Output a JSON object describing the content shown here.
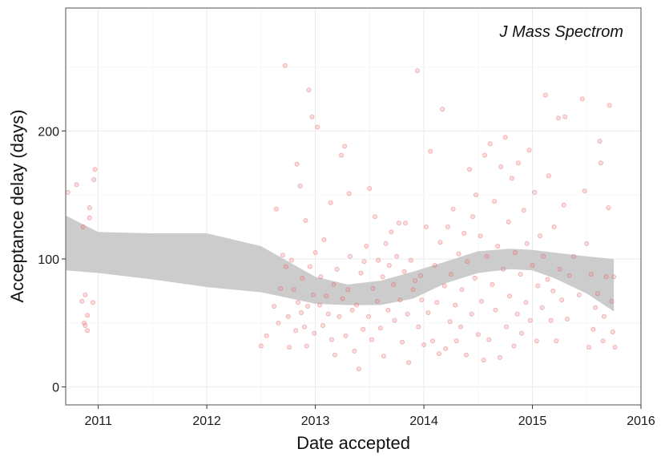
{
  "chart_data": {
    "type": "scatter",
    "title": "",
    "panel_label": "J Mass Spectrom",
    "xlabel": "Date accepted",
    "ylabel": "Acceptance delay (days)",
    "xlim": [
      2010.7,
      2016.0
    ],
    "ylim": [
      -14,
      296
    ],
    "x_ticks": [
      2011,
      2012,
      2013,
      2014,
      2015,
      2016
    ],
    "y_ticks": [
      0,
      100,
      200
    ],
    "grid": true,
    "legend": "none",
    "point_color": "#f08080",
    "band_color": "#cccccc",
    "smooth_fit": {
      "x": [
        2010.7,
        2011.0,
        2011.5,
        2012.0,
        2012.5,
        2013.0,
        2013.3,
        2013.6,
        2013.9,
        2014.2,
        2014.5,
        2014.8,
        2015.0,
        2015.2,
        2015.5,
        2015.75
      ],
      "lower": [
        91,
        89,
        84,
        78,
        74,
        65,
        64,
        64,
        69,
        81,
        89,
        92,
        91,
        85,
        73,
        59
      ],
      "upper": [
        134,
        121,
        120,
        120,
        110,
        86,
        80,
        83,
        90,
        98,
        106,
        108,
        107,
        105,
        102,
        100
      ]
    },
    "points": [
      [
        2010.72,
        152
      ],
      [
        2010.8,
        158
      ],
      [
        2010.86,
        125
      ],
      [
        2010.88,
        72
      ],
      [
        2010.88,
        48
      ],
      [
        2010.9,
        44
      ],
      [
        2010.92,
        132
      ],
      [
        2010.95,
        66
      ],
      [
        2010.97,
        170
      ],
      [
        2010.96,
        162
      ],
      [
        2010.85,
        67
      ],
      [
        2010.9,
        56
      ],
      [
        2010.87,
        50
      ],
      [
        2010.92,
        140
      ],
      [
        2012.5,
        32
      ],
      [
        2012.55,
        40
      ],
      [
        2012.62,
        63
      ],
      [
        2012.64,
        139
      ],
      [
        2012.66,
        50
      ],
      [
        2012.68,
        77
      ],
      [
        2012.7,
        103
      ],
      [
        2012.72,
        251
      ],
      [
        2012.73,
        94
      ],
      [
        2012.75,
        55
      ],
      [
        2012.76,
        31
      ],
      [
        2012.78,
        99
      ],
      [
        2012.8,
        76
      ],
      [
        2012.82,
        44
      ],
      [
        2012.83,
        174
      ],
      [
        2012.84,
        66
      ],
      [
        2012.86,
        157
      ],
      [
        2012.87,
        58
      ],
      [
        2012.88,
        85
      ],
      [
        2012.9,
        47
      ],
      [
        2012.91,
        130
      ],
      [
        2012.92,
        32
      ],
      [
        2012.93,
        63
      ],
      [
        2012.94,
        232
      ],
      [
        2012.95,
        94
      ],
      [
        2012.97,
        211
      ],
      [
        2012.98,
        72
      ],
      [
        2012.99,
        42
      ],
      [
        2013.0,
        105
      ],
      [
        2013.02,
        203
      ],
      [
        2013.04,
        64
      ],
      [
        2013.05,
        86
      ],
      [
        2013.07,
        48
      ],
      [
        2013.08,
        115
      ],
      [
        2013.1,
        71
      ],
      [
        2013.12,
        57
      ],
      [
        2013.14,
        144
      ],
      [
        2013.15,
        37
      ],
      [
        2013.17,
        80
      ],
      [
        2013.18,
        25
      ],
      [
        2013.2,
        92
      ],
      [
        2013.22,
        55
      ],
      [
        2013.24,
        181
      ],
      [
        2013.25,
        69
      ],
      [
        2013.27,
        188
      ],
      [
        2013.28,
        40
      ],
      [
        2013.3,
        76
      ],
      [
        2013.31,
        151
      ],
      [
        2013.32,
        102
      ],
      [
        2013.34,
        60
      ],
      [
        2013.36,
        28
      ],
      [
        2013.38,
        64
      ],
      [
        2013.4,
        14
      ],
      [
        2013.42,
        89
      ],
      [
        2013.44,
        45
      ],
      [
        2013.45,
        98
      ],
      [
        2013.47,
        110
      ],
      [
        2013.49,
        55
      ],
      [
        2013.5,
        155
      ],
      [
        2013.52,
        37
      ],
      [
        2013.53,
        77
      ],
      [
        2013.55,
        133
      ],
      [
        2013.57,
        67
      ],
      [
        2013.58,
        99
      ],
      [
        2013.6,
        46
      ],
      [
        2013.62,
        86
      ],
      [
        2013.63,
        24
      ],
      [
        2013.65,
        112
      ],
      [
        2013.67,
        60
      ],
      [
        2013.68,
        95
      ],
      [
        2013.7,
        121
      ],
      [
        2013.72,
        80
      ],
      [
        2013.73,
        52
      ],
      [
        2013.75,
        102
      ],
      [
        2013.77,
        128
      ],
      [
        2013.78,
        68
      ],
      [
        2013.8,
        35
      ],
      [
        2013.82,
        90
      ],
      [
        2013.83,
        128
      ],
      [
        2013.85,
        57
      ],
      [
        2013.86,
        19
      ],
      [
        2013.88,
        99
      ],
      [
        2013.9,
        76
      ],
      [
        2013.92,
        83
      ],
      [
        2013.94,
        247
      ],
      [
        2013.95,
        47
      ],
      [
        2013.97,
        87
      ],
      [
        2013.98,
        68
      ],
      [
        2014.0,
        33
      ],
      [
        2014.02,
        125
      ],
      [
        2014.04,
        58
      ],
      [
        2014.06,
        184
      ],
      [
        2014.08,
        36
      ],
      [
        2014.1,
        95
      ],
      [
        2014.12,
        66
      ],
      [
        2014.14,
        26
      ],
      [
        2014.15,
        113
      ],
      [
        2014.17,
        217
      ],
      [
        2014.19,
        79
      ],
      [
        2014.2,
        30
      ],
      [
        2014.22,
        125
      ],
      [
        2014.24,
        51
      ],
      [
        2014.25,
        88
      ],
      [
        2014.27,
        139
      ],
      [
        2014.29,
        64
      ],
      [
        2014.3,
        36
      ],
      [
        2014.32,
        104
      ],
      [
        2014.34,
        47
      ],
      [
        2014.35,
        76
      ],
      [
        2014.37,
        120
      ],
      [
        2014.39,
        25
      ],
      [
        2014.4,
        98
      ],
      [
        2014.42,
        170
      ],
      [
        2014.44,
        57
      ],
      [
        2014.45,
        133
      ],
      [
        2014.47,
        85
      ],
      [
        2014.48,
        150
      ],
      [
        2014.5,
        41
      ],
      [
        2014.52,
        118
      ],
      [
        2014.53,
        67
      ],
      [
        2014.55,
        21
      ],
      [
        2014.56,
        181
      ],
      [
        2014.58,
        102
      ],
      [
        2014.6,
        37
      ],
      [
        2014.61,
        190
      ],
      [
        2014.63,
        80
      ],
      [
        2014.65,
        145
      ],
      [
        2014.66,
        60
      ],
      [
        2014.68,
        110
      ],
      [
        2014.7,
        23
      ],
      [
        2014.71,
        172
      ],
      [
        2014.73,
        92
      ],
      [
        2014.75,
        195
      ],
      [
        2014.76,
        47
      ],
      [
        2014.78,
        129
      ],
      [
        2014.79,
        71
      ],
      [
        2014.81,
        163
      ],
      [
        2014.83,
        32
      ],
      [
        2014.84,
        105
      ],
      [
        2014.86,
        57
      ],
      [
        2014.87,
        175
      ],
      [
        2014.89,
        88
      ],
      [
        2014.9,
        42
      ],
      [
        2014.92,
        138
      ],
      [
        2014.94,
        66
      ],
      [
        2014.95,
        112
      ],
      [
        2014.97,
        185
      ],
      [
        2014.98,
        52
      ],
      [
        2015.0,
        95
      ],
      [
        2015.02,
        152
      ],
      [
        2015.04,
        36
      ],
      [
        2015.05,
        79
      ],
      [
        2015.07,
        118
      ],
      [
        2015.09,
        62
      ],
      [
        2015.1,
        102
      ],
      [
        2015.12,
        228
      ],
      [
        2015.14,
        84
      ],
      [
        2015.15,
        165
      ],
      [
        2015.17,
        52
      ],
      [
        2015.19,
        75
      ],
      [
        2015.2,
        125
      ],
      [
        2015.22,
        36
      ],
      [
        2015.24,
        210
      ],
      [
        2015.25,
        92
      ],
      [
        2015.27,
        68
      ],
      [
        2015.29,
        142
      ],
      [
        2015.3,
        211
      ],
      [
        2015.32,
        53
      ],
      [
        2015.34,
        87
      ],
      [
        2015.38,
        102
      ],
      [
        2015.43,
        72
      ],
      [
        2015.46,
        225
      ],
      [
        2015.48,
        153
      ],
      [
        2015.5,
        112
      ],
      [
        2015.52,
        31
      ],
      [
        2015.54,
        88
      ],
      [
        2015.56,
        45
      ],
      [
        2015.58,
        62
      ],
      [
        2015.6,
        73
      ],
      [
        2015.62,
        192
      ],
      [
        2015.63,
        175
      ],
      [
        2015.65,
        36
      ],
      [
        2015.66,
        55
      ],
      [
        2015.68,
        86
      ],
      [
        2015.7,
        140
      ],
      [
        2015.71,
        220
      ],
      [
        2015.73,
        67
      ],
      [
        2015.74,
        43
      ],
      [
        2015.75,
        86
      ],
      [
        2015.76,
        31
      ]
    ]
  }
}
